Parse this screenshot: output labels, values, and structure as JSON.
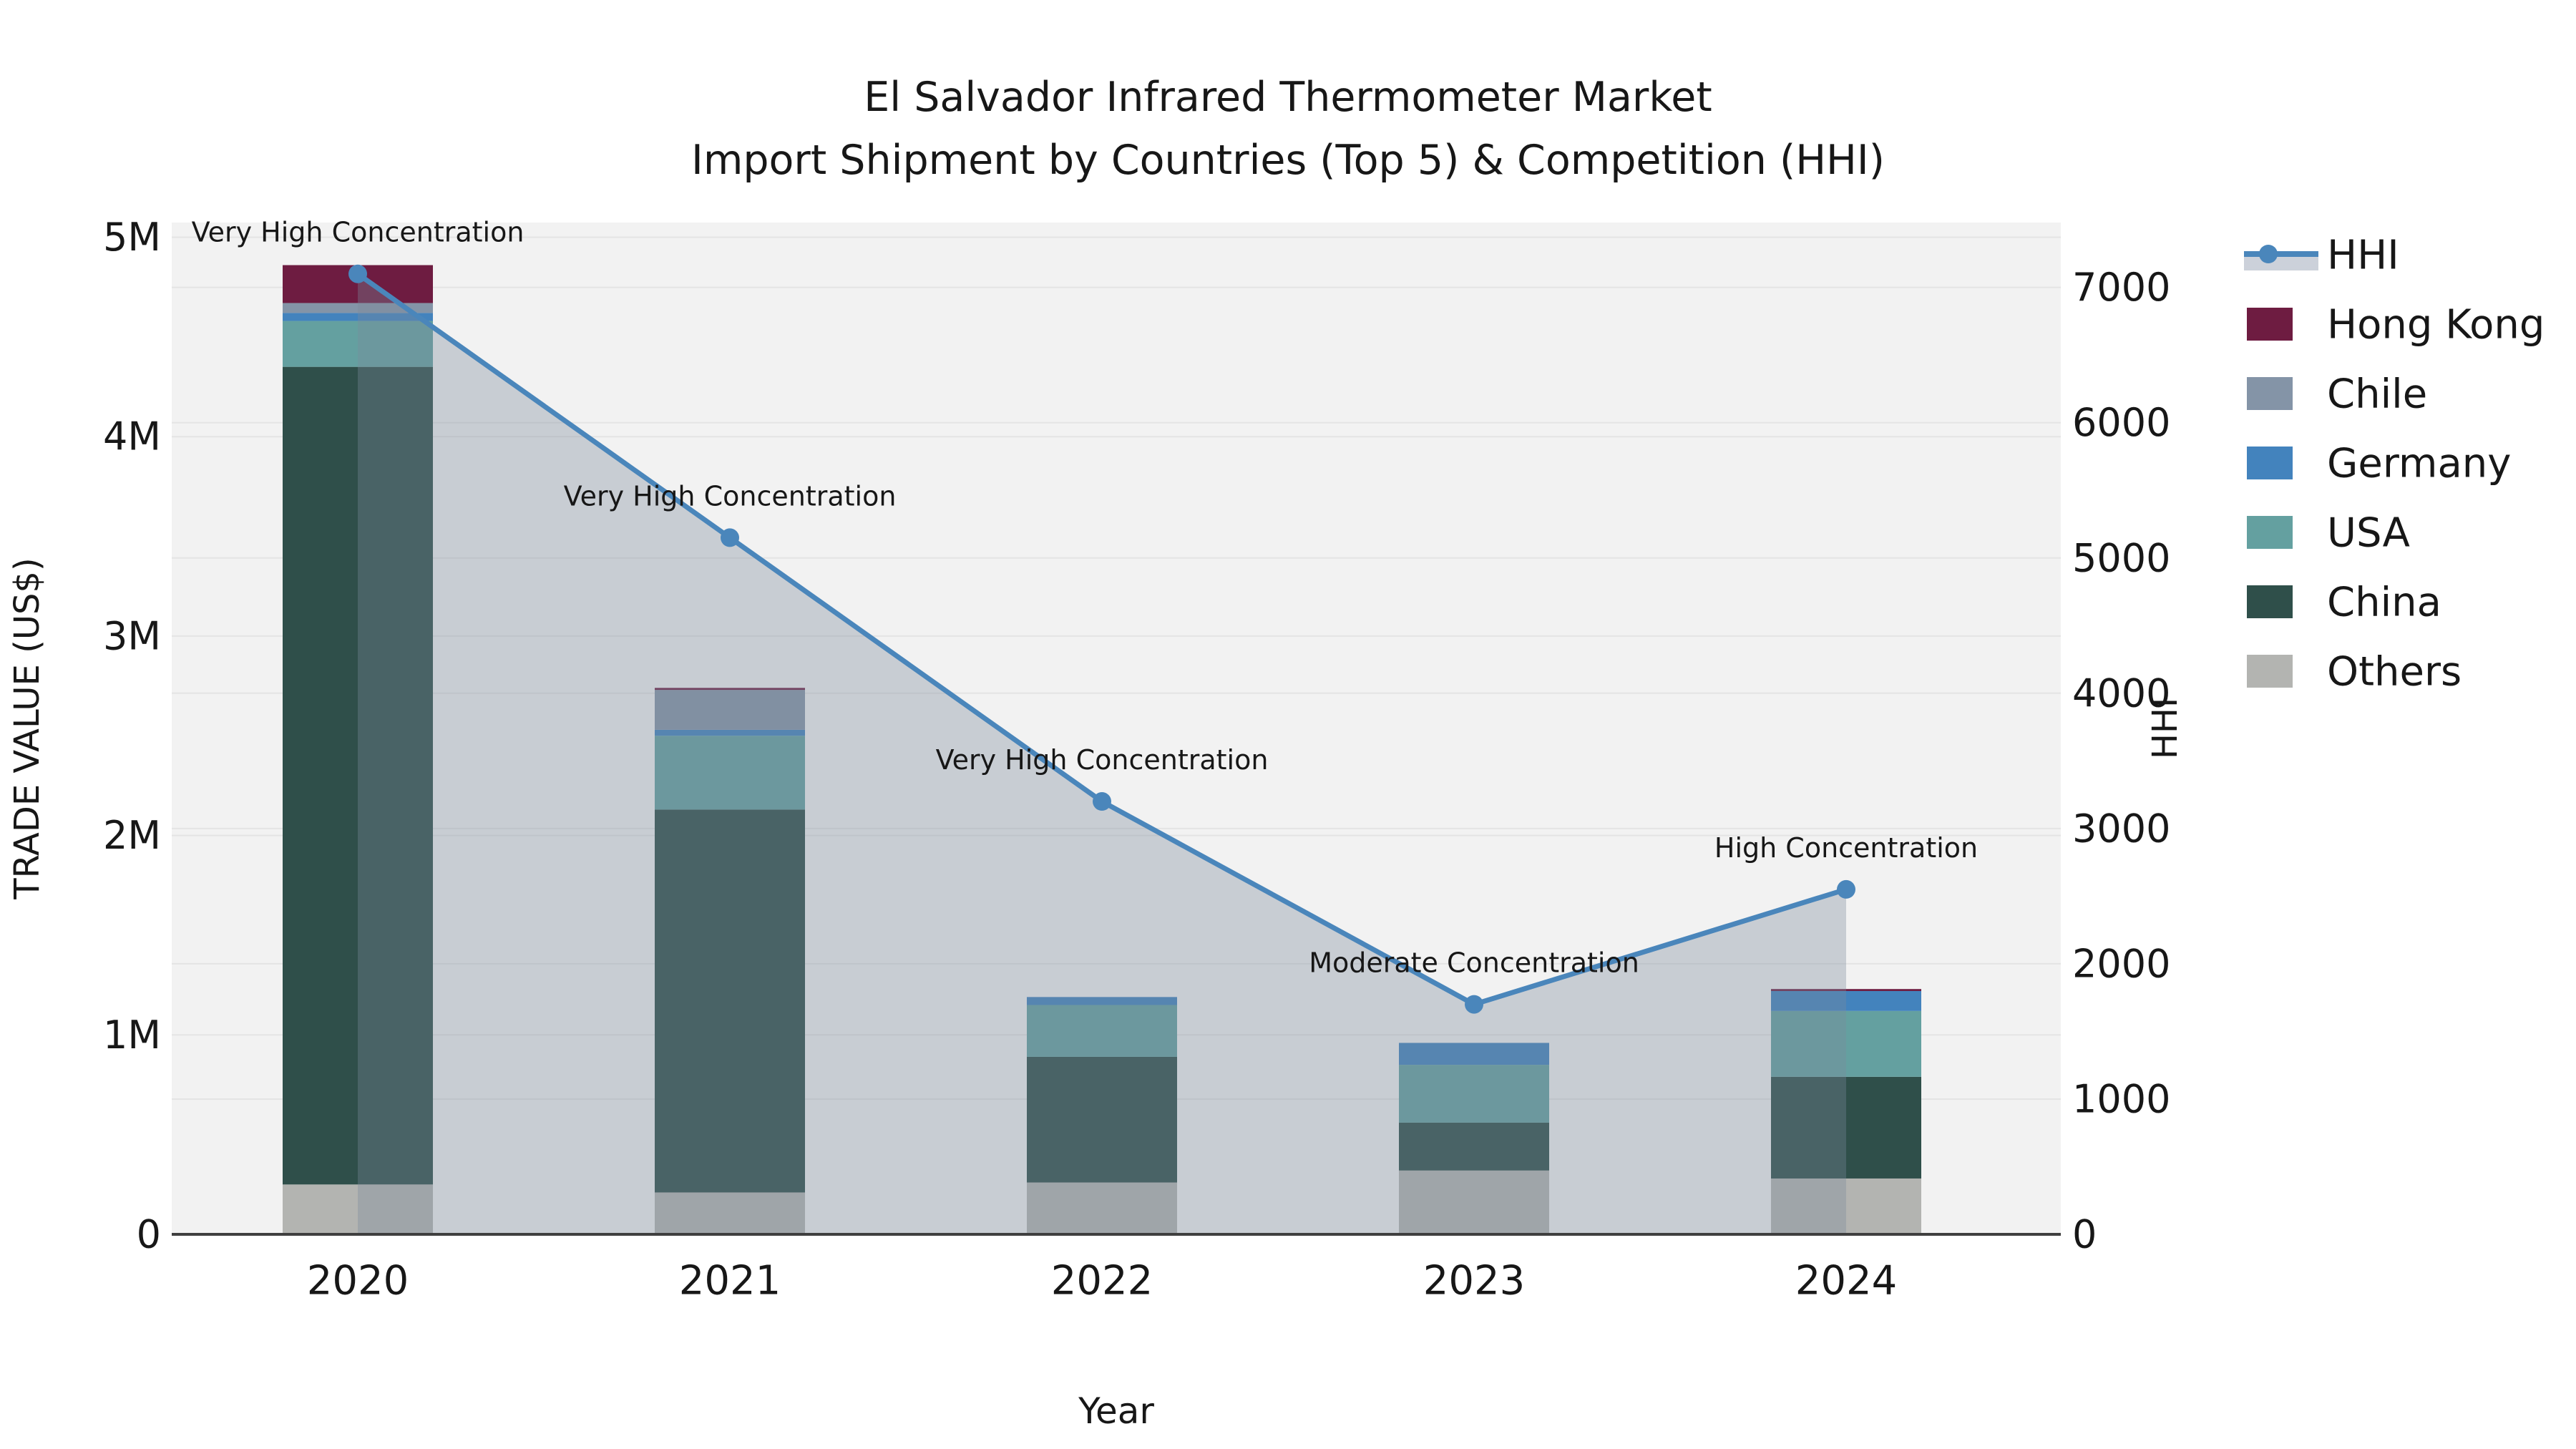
{
  "chart_data": {
    "type": "bar",
    "subtype": "stacked-bars-with-line",
    "title_line1": "El Salvador Infrared Thermometer Market",
    "title_line2": "Import Shipment by Countries (Top 5) & Competition (HHI)",
    "xlabel": "Year",
    "ylabel_left": "TRADE VALUE (US$)",
    "ylabel_right": "HHI",
    "categories": [
      "2020",
      "2021",
      "2022",
      "2023",
      "2024"
    ],
    "unit_left": "US$ millions",
    "series": [
      {
        "name": "Others",
        "color": "#b3b4b1",
        "values": [
          0.25,
          0.21,
          0.26,
          0.32,
          0.28
        ]
      },
      {
        "name": "China",
        "color": "#2f4f4a",
        "values": [
          4.1,
          1.92,
          0.63,
          0.24,
          0.51
        ]
      },
      {
        "name": "USA",
        "color": "#64a0a0",
        "values": [
          0.23,
          0.37,
          0.26,
          0.29,
          0.33
        ]
      },
      {
        "name": "Germany",
        "color": "#4383bd",
        "values": [
          0.04,
          0.03,
          0.04,
          0.11,
          0.1
        ]
      },
      {
        "name": "Chile",
        "color": "#8494a7",
        "values": [
          0.05,
          0.2,
          0.0,
          0.0,
          0.0
        ]
      },
      {
        "name": "Hong Kong",
        "color": "#6e1c41",
        "values": [
          0.19,
          0.01,
          0.0,
          0.0,
          0.01
        ]
      }
    ],
    "bar_totals": [
      4.86,
      2.74,
      1.19,
      0.96,
      1.23
    ],
    "line_series": {
      "name": "HHI",
      "color": "#4a86bb",
      "area_color": "#7a8a9b",
      "area_opacity": 0.35,
      "values": [
        7100,
        5150,
        3200,
        1700,
        2550
      ]
    },
    "annotations": [
      {
        "year": "2020",
        "text": "Very High Concentration"
      },
      {
        "year": "2021",
        "text": "Very High Concentration"
      },
      {
        "year": "2022",
        "text": "Very High Concentration"
      },
      {
        "year": "2023",
        "text": "Moderate Concentration"
      },
      {
        "year": "2024",
        "text": "High Concentration"
      }
    ],
    "axis_left": {
      "ticks": [
        "0",
        "1M",
        "2M",
        "3M",
        "4M",
        "5M"
      ],
      "tick_values": [
        0,
        1,
        2,
        3,
        4,
        5
      ],
      "range": [
        0,
        5.07
      ]
    },
    "axis_right": {
      "ticks": [
        "0",
        "1000",
        "2000",
        "3000",
        "4000",
        "5000",
        "6000",
        "7000"
      ],
      "tick_values": [
        0,
        1000,
        2000,
        3000,
        4000,
        5000,
        6000,
        7000
      ],
      "range": [
        0,
        7480
      ]
    },
    "legend": {
      "position": "right",
      "items": [
        {
          "label": "HHI",
          "type": "line",
          "color": "#4a86bb",
          "band_color": "#ccd1da"
        },
        {
          "label": "Hong Kong",
          "type": "swatch",
          "color": "#6e1c41"
        },
        {
          "label": "Chile",
          "type": "swatch",
          "color": "#8494a7"
        },
        {
          "label": "Germany",
          "type": "swatch",
          "color": "#4383bd"
        },
        {
          "label": "USA",
          "type": "swatch",
          "color": "#64a0a0"
        },
        {
          "label": "China",
          "type": "swatch",
          "color": "#2f4f4a"
        },
        {
          "label": "Others",
          "type": "swatch",
          "color": "#b3b4b1"
        }
      ]
    },
    "style": {
      "plot_bg": "#f2f2f2",
      "grid_color": "#e4e4e4",
      "axis_line_color": "#3f3f3f",
      "text_color": "#171717",
      "grid_on": true
    }
  }
}
